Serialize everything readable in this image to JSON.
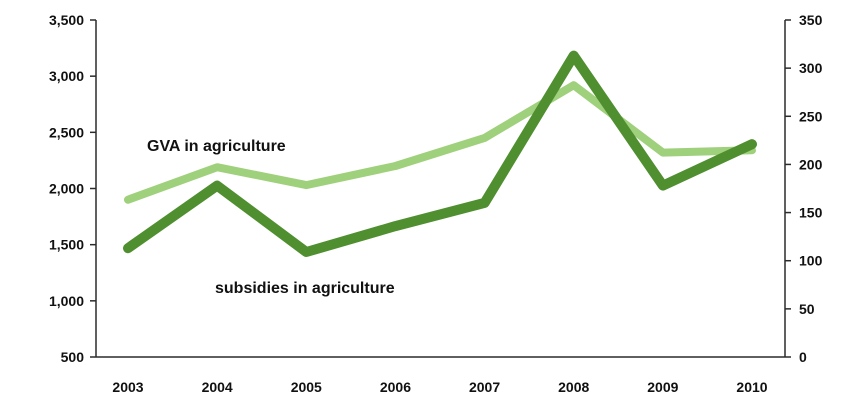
{
  "chart_data": {
    "type": "line",
    "title": "",
    "xlabel": "",
    "ylabel": "",
    "y2label": "",
    "x": [
      "2003",
      "2004",
      "2005",
      "2006",
      "2007",
      "2008",
      "2009",
      "2010"
    ],
    "ylim": [
      500,
      3500
    ],
    "y_ticks": [
      "500",
      "1,000",
      "1,500",
      "2,000",
      "2,500",
      "3,000",
      "3,500"
    ],
    "y2lim": [
      0,
      350
    ],
    "y2_ticks": [
      "0",
      "50",
      "100",
      "150",
      "200",
      "250",
      "300",
      "350"
    ],
    "grid": false,
    "legend": "none (series labelled inline)",
    "series": [
      {
        "name": "GVA in agriculture",
        "axis": "left",
        "color": "#9fd07c",
        "values": [
          1900,
          2190,
          2030,
          2200,
          2450,
          2920,
          2320,
          2340
        ]
      },
      {
        "name": "subsidies in agriculture",
        "axis": "right",
        "color": "#4f8f2f",
        "values": [
          113,
          178,
          109,
          136,
          160,
          313,
          178,
          221
        ]
      }
    ]
  }
}
